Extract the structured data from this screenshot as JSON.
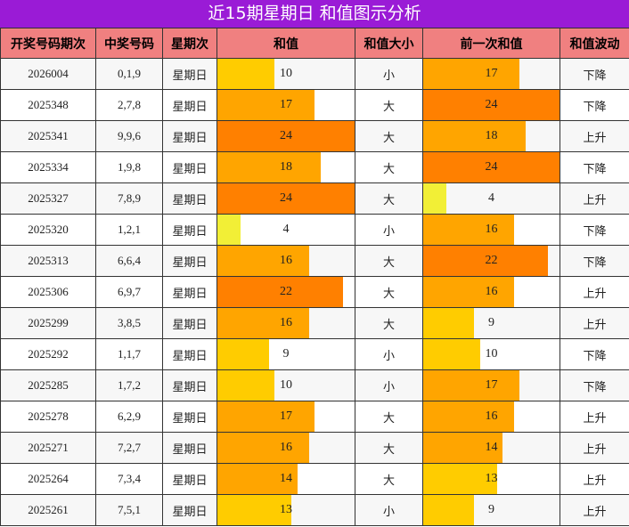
{
  "title": "近15期星期日 和值图示分析",
  "columns": [
    "开奖号码期次",
    "中奖号码",
    "星期次",
    "和值",
    "和值大小",
    "前一次和值",
    "和值波动"
  ],
  "colors": {
    "header_bg": "#f08080",
    "title_bg": "#9a1bd6",
    "sum_high": "#ff8000",
    "sum_mid": "#ffa500",
    "sum_low": "#ffcc00",
    "sum_min": "#f2ef36"
  },
  "chart_data": {
    "type": "table",
    "bar_max": 24,
    "rows": [
      {
        "issue": "2026004",
        "numbers": "0,1,9",
        "weekday": "星期日",
        "sum": 10,
        "size": "小",
        "prev_sum": 17,
        "trend": "下降"
      },
      {
        "issue": "2025348",
        "numbers": "2,7,8",
        "weekday": "星期日",
        "sum": 17,
        "size": "大",
        "prev_sum": 24,
        "trend": "下降"
      },
      {
        "issue": "2025341",
        "numbers": "9,9,6",
        "weekday": "星期日",
        "sum": 24,
        "size": "大",
        "prev_sum": 18,
        "trend": "上升"
      },
      {
        "issue": "2025334",
        "numbers": "1,9,8",
        "weekday": "星期日",
        "sum": 18,
        "size": "大",
        "prev_sum": 24,
        "trend": "下降"
      },
      {
        "issue": "2025327",
        "numbers": "7,8,9",
        "weekday": "星期日",
        "sum": 24,
        "size": "大",
        "prev_sum": 4,
        "trend": "上升"
      },
      {
        "issue": "2025320",
        "numbers": "1,2,1",
        "weekday": "星期日",
        "sum": 4,
        "size": "小",
        "prev_sum": 16,
        "trend": "下降"
      },
      {
        "issue": "2025313",
        "numbers": "6,6,4",
        "weekday": "星期日",
        "sum": 16,
        "size": "大",
        "prev_sum": 22,
        "trend": "下降"
      },
      {
        "issue": "2025306",
        "numbers": "6,9,7",
        "weekday": "星期日",
        "sum": 22,
        "size": "大",
        "prev_sum": 16,
        "trend": "上升"
      },
      {
        "issue": "2025299",
        "numbers": "3,8,5",
        "weekday": "星期日",
        "sum": 16,
        "size": "大",
        "prev_sum": 9,
        "trend": "上升"
      },
      {
        "issue": "2025292",
        "numbers": "1,1,7",
        "weekday": "星期日",
        "sum": 9,
        "size": "小",
        "prev_sum": 10,
        "trend": "下降"
      },
      {
        "issue": "2025285",
        "numbers": "1,7,2",
        "weekday": "星期日",
        "sum": 10,
        "size": "小",
        "prev_sum": 17,
        "trend": "下降"
      },
      {
        "issue": "2025278",
        "numbers": "6,2,9",
        "weekday": "星期日",
        "sum": 17,
        "size": "大",
        "prev_sum": 16,
        "trend": "上升"
      },
      {
        "issue": "2025271",
        "numbers": "7,2,7",
        "weekday": "星期日",
        "sum": 16,
        "size": "大",
        "prev_sum": 14,
        "trend": "上升"
      },
      {
        "issue": "2025264",
        "numbers": "7,3,4",
        "weekday": "星期日",
        "sum": 14,
        "size": "大",
        "prev_sum": 13,
        "trend": "上升"
      },
      {
        "issue": "2025261",
        "numbers": "7,5,1",
        "weekday": "星期日",
        "sum": 13,
        "size": "小",
        "prev_sum": 9,
        "trend": "上升"
      }
    ]
  }
}
